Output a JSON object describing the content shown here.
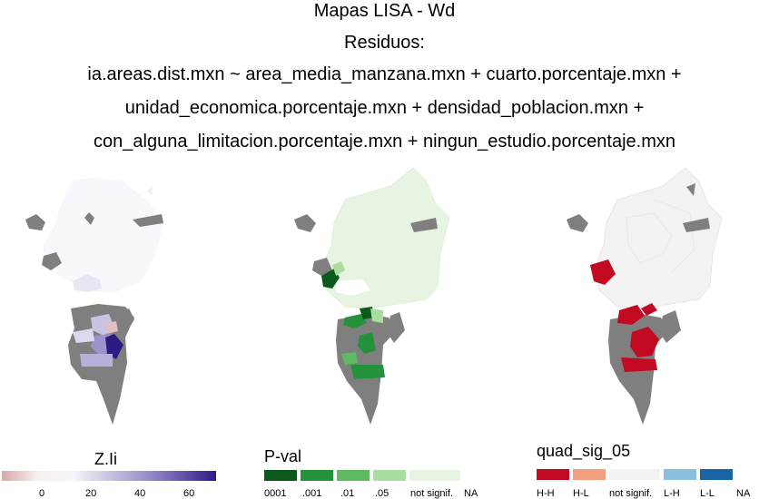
{
  "title": {
    "lines": [
      "Mapas LISA - Wd",
      "Residuos:",
      "ia.areas.dist.mxn ~ area_media_manzana.mxn + cuarto.porcentaje.mxn +",
      "unidad_economica.porcentaje.mxn + densidad_poblacion.mxn +",
      "con_alguna_limitacion.porcentaje.mxn + ningun_estudio.porcentaje.mxn"
    ]
  },
  "maps": [
    {
      "name": "Z.Ii",
      "fill": "#f7f6fb"
    },
    {
      "name": "P-val",
      "fill": "#e6f4e1"
    },
    {
      "name": "quad_sig_05",
      "fill": "#f2f2f2"
    }
  ],
  "legends": {
    "zli": {
      "title": "Z.Ii",
      "ticks": [
        "0",
        "20",
        "40",
        "60"
      ],
      "gradient": [
        "#d7a9a7",
        "#f7f0f0",
        "#f5f4fa",
        "#c9c4e3",
        "#9d92cc",
        "#6a57ad",
        "#2e1a85"
      ]
    },
    "pval": {
      "title": "P-val",
      "items": [
        {
          "label": "0001",
          "color": "#0b5a1c"
        },
        {
          "label": ".001",
          "color": "#23923a"
        },
        {
          "label": ".01",
          "color": "#5fbb62"
        },
        {
          "label": ".05",
          "color": "#aadea1"
        },
        {
          "label": "not signif.",
          "color": "#e6f4e1"
        },
        {
          "label": "NA",
          "color": "#ffffff"
        }
      ]
    },
    "quad": {
      "title": "quad_sig_05",
      "items": [
        {
          "label": "H-H",
          "color": "#c20a22"
        },
        {
          "label": "H-L",
          "color": "#f3a07e"
        },
        {
          "label": "not signif.",
          "color": "#f2f2f2"
        },
        {
          "label": "L-H",
          "color": "#8abfde"
        },
        {
          "label": "L-L",
          "color": "#1b64a6"
        },
        {
          "label": "NA",
          "color": "#ffffff"
        }
      ]
    }
  },
  "colors": {
    "na_gray": "#7f7f7f",
    "border_light": "#dcdcdc"
  }
}
